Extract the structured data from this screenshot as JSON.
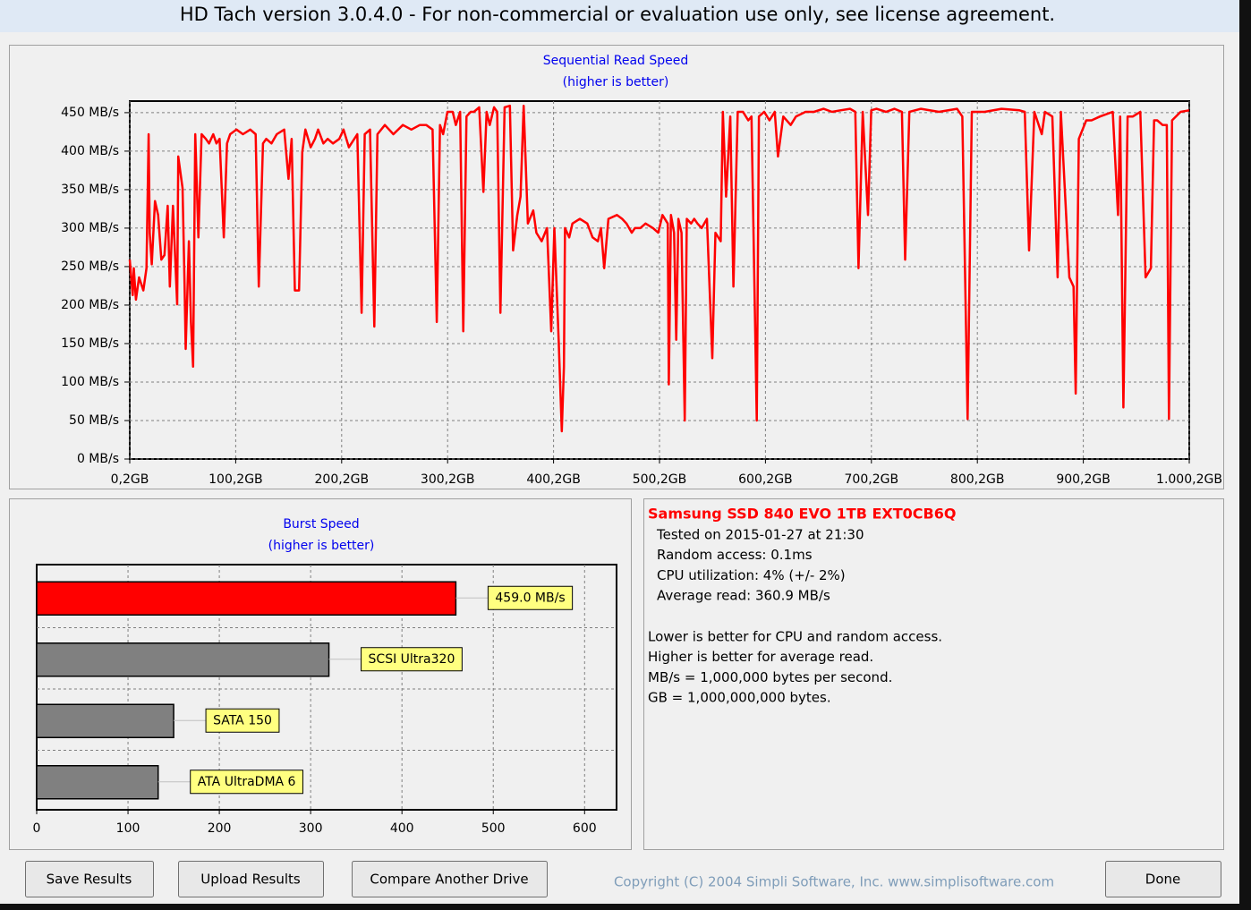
{
  "window_title": "HD Tach version 3.0.4.0  - For non-commercial or evaluation use only, see license agreement.",
  "chart_data": [
    {
      "type": "line",
      "title": "Sequential Read Speed",
      "subtitle": "(higher is better)",
      "x": [
        0.2,
        3,
        4,
        6,
        9,
        13,
        16,
        18,
        19,
        21,
        24,
        27,
        30,
        33,
        36,
        38,
        41,
        45,
        46,
        50,
        52,
        53,
        56,
        58,
        60,
        62,
        65,
        68,
        72,
        75,
        79,
        82,
        85,
        89,
        92,
        95,
        101,
        107,
        114,
        119,
        122,
        126,
        129,
        134,
        139,
        146,
        150,
        153,
        156,
        160,
        163,
        166,
        171,
        175,
        178,
        183,
        187,
        192,
        198,
        202,
        207,
        215,
        219,
        222,
        227,
        231,
        234,
        241,
        249,
        258,
        266,
        274,
        280,
        286,
        290,
        293,
        296,
        300,
        305,
        308,
        312,
        315,
        318,
        322,
        325,
        330,
        334,
        337,
        340,
        344,
        347,
        350,
        354,
        359,
        362,
        366,
        369,
        372,
        376,
        381,
        384,
        389,
        394,
        398,
        401,
        405,
        408,
        410,
        411,
        415,
        418,
        425,
        432,
        437,
        442,
        445,
        448,
        452,
        460,
        465,
        469,
        474,
        477,
        482,
        487,
        494,
        499,
        503,
        508,
        509,
        511,
        514,
        516,
        518,
        521,
        524,
        526,
        530,
        533,
        536,
        540,
        545,
        550,
        553,
        558,
        560,
        563,
        567,
        570,
        574,
        579,
        584,
        587,
        592,
        594,
        599,
        604,
        609,
        612,
        617,
        624,
        629,
        638,
        646,
        655,
        663,
        671,
        680,
        685,
        688,
        692,
        697,
        700,
        705,
        714,
        722,
        729,
        732,
        736,
        747,
        764,
        781,
        786,
        791,
        795,
        807,
        823,
        840,
        845,
        849,
        854,
        861,
        864,
        871,
        876,
        879,
        887,
        891,
        893,
        896,
        903,
        908,
        916,
        928,
        933,
        935,
        938,
        942,
        947,
        954,
        959,
        964,
        967,
        970,
        975,
        979,
        981,
        984,
        992,
        1000.2
      ],
      "values": [
        259,
        213,
        248,
        207,
        236,
        219,
        248,
        422,
        294,
        253,
        335,
        317,
        259,
        265,
        329,
        224,
        329,
        201,
        393,
        352,
        224,
        143,
        283,
        178,
        120,
        422,
        288,
        422,
        416,
        410,
        422,
        410,
        416,
        288,
        410,
        422,
        428,
        422,
        428,
        422,
        224,
        410,
        416,
        410,
        422,
        428,
        364,
        416,
        219,
        219,
        399,
        428,
        405,
        416,
        428,
        410,
        416,
        410,
        416,
        428,
        405,
        422,
        190,
        422,
        428,
        172,
        422,
        434,
        422,
        434,
        428,
        434,
        434,
        428,
        178,
        434,
        422,
        451,
        451,
        434,
        451,
        166,
        445,
        451,
        451,
        457,
        347,
        451,
        434,
        457,
        451,
        190,
        457,
        459,
        271,
        317,
        341,
        459,
        306,
        323,
        294,
        283,
        300,
        166,
        300,
        155,
        36,
        120,
        300,
        288,
        306,
        312,
        306,
        288,
        283,
        300,
        248,
        312,
        317,
        312,
        306,
        294,
        300,
        300,
        306,
        300,
        294,
        317,
        306,
        97,
        317,
        294,
        155,
        312,
        294,
        50,
        312,
        306,
        312,
        306,
        300,
        312,
        131,
        294,
        283,
        451,
        341,
        445,
        224,
        451,
        451,
        440,
        445,
        50,
        445,
        451,
        440,
        451,
        393,
        445,
        434,
        445,
        451,
        451,
        455,
        451,
        453,
        455,
        451,
        248,
        451,
        317,
        453,
        455,
        451,
        455,
        451,
        259,
        451,
        455,
        451,
        455,
        445,
        52,
        451,
        451,
        455,
        453,
        451,
        271,
        451,
        422,
        451,
        445,
        236,
        451,
        236,
        224,
        85,
        416,
        440,
        440,
        445,
        451,
        317,
        445,
        67,
        445,
        445,
        451,
        236,
        248,
        440,
        440,
        434,
        434,
        52,
        440,
        451,
        453
      ],
      "color": "#ff0000",
      "xlim": [
        0.2,
        1000.2
      ],
      "xticks": [
        {
          "value": 0.2,
          "label": "0,2GB"
        },
        {
          "value": 100.2,
          "label": "100,2GB"
        },
        {
          "value": 200.2,
          "label": "200,2GB"
        },
        {
          "value": 300.2,
          "label": "300,2GB"
        },
        {
          "value": 400.2,
          "label": "400,2GB"
        },
        {
          "value": 500.2,
          "label": "500,2GB"
        },
        {
          "value": 600.2,
          "label": "600,2GB"
        },
        {
          "value": 700.2,
          "label": "700,2GB"
        },
        {
          "value": 800.2,
          "label": "800,2GB"
        },
        {
          "value": 900.2,
          "label": "900,2GB"
        },
        {
          "value": 1000.2,
          "label": "1.000,2GB"
        }
      ],
      "ylim": [
        0,
        465
      ],
      "yticks": [
        {
          "value": 0,
          "label": "0 MB/s"
        },
        {
          "value": 50,
          "label": "50 MB/s"
        },
        {
          "value": 100,
          "label": "100 MB/s"
        },
        {
          "value": 150,
          "label": "150 MB/s"
        },
        {
          "value": 200,
          "label": "200 MB/s"
        },
        {
          "value": 250,
          "label": "250 MB/s"
        },
        {
          "value": 300,
          "label": "300 MB/s"
        },
        {
          "value": 350,
          "label": "350 MB/s"
        },
        {
          "value": 400,
          "label": "400 MB/s"
        },
        {
          "value": 450,
          "label": "450 MB/s"
        }
      ],
      "grid": true
    },
    {
      "type": "bar",
      "orientation": "horizontal",
      "title": "Burst Speed",
      "subtitle": "(higher is better)",
      "categories": [
        null,
        "SCSI Ultra320",
        "SATA 150",
        "ATA UltraDMA 6"
      ],
      "values": [
        459,
        320,
        150,
        133
      ],
      "value_labels": [
        "459.0 MB/s",
        null,
        null,
        null
      ],
      "colors": [
        "#ff0000",
        "#808080",
        "#808080",
        "#808080"
      ],
      "xlim": [
        0,
        635
      ],
      "xticks": [
        0,
        100,
        200,
        300,
        400,
        500,
        600
      ],
      "grid": true
    }
  ],
  "info": {
    "drive": "Samsung SSD 840 EVO 1TB EXT0CB6Q",
    "lines": [
      "Tested on 2015-01-27 at 21:30",
      "Random access: 0.1ms",
      "CPU utilization: 4% (+/- 2%)",
      "Average read: 360.9 MB/s"
    ],
    "notes": [
      "Lower is better for CPU and random access.",
      "Higher is better for average read.",
      "MB/s = 1,000,000 bytes per second.",
      "GB = 1,000,000,000 bytes."
    ]
  },
  "buttons": [
    "Save Results",
    "Upload Results",
    "Compare Another Drive",
    "Done"
  ],
  "copyright": "Copyright (C) 2004 Simpli Software, Inc. www.simplisoftware.com"
}
